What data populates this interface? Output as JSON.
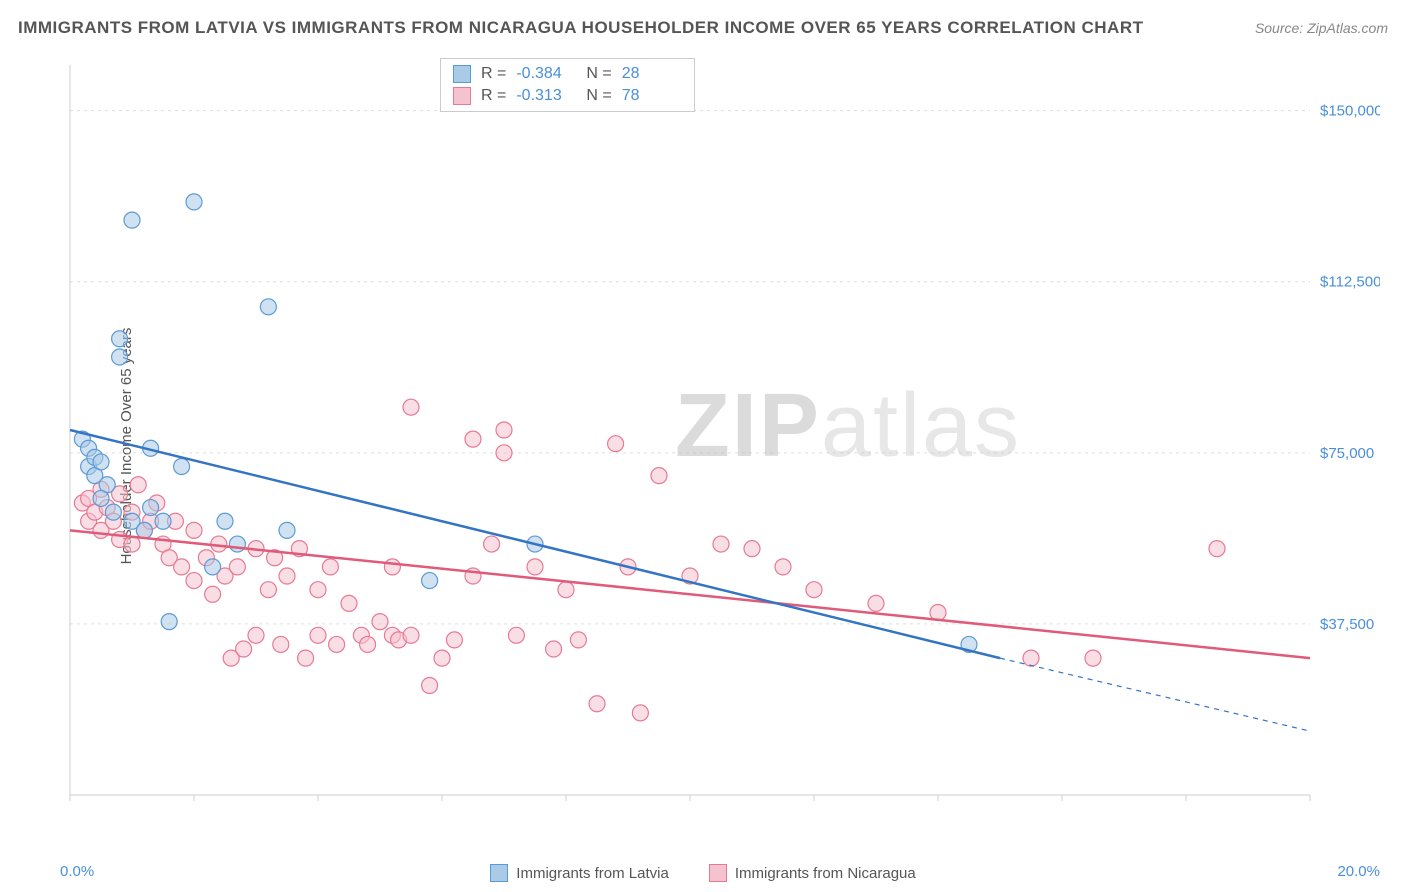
{
  "title": "IMMIGRANTS FROM LATVIA VS IMMIGRANTS FROM NICARAGUA HOUSEHOLDER INCOME OVER 65 YEARS CORRELATION CHART",
  "source": "Source: ZipAtlas.com",
  "ylabel": "Householder Income Over 65 years",
  "watermark": {
    "bold": "ZIP",
    "rest": "atlas"
  },
  "chart": {
    "type": "scatter",
    "xlim": [
      0,
      20
    ],
    "ylim": [
      0,
      160000
    ],
    "xmin_label": "0.0%",
    "xmax_label": "20.0%",
    "yticks": [
      {
        "value": 37500,
        "label": "$37,500"
      },
      {
        "value": 75000,
        "label": "$75,000"
      },
      {
        "value": 112500,
        "label": "$112,500"
      },
      {
        "value": 150000,
        "label": "$150,000"
      }
    ],
    "xticks_minor": [
      0,
      2,
      4,
      6,
      8,
      10,
      12,
      14,
      16,
      18,
      20
    ],
    "background_color": "#ffffff",
    "grid_color": "#dddddd",
    "axis_color": "#cccccc",
    "tick_label_color": "#4a8fd8",
    "marker_radius": 8,
    "marker_opacity": 0.55,
    "line_width": 2.5,
    "series": [
      {
        "name": "Immigrants from Latvia",
        "color_fill": "#a9cbe8",
        "color_stroke": "#5b9bd5",
        "line_color": "#3374c4",
        "R": "-0.384",
        "N": "28",
        "trend": {
          "x1": 0,
          "y1": 80000,
          "x2": 15,
          "y2": 30000,
          "dash_from_x": 15,
          "dash_to_x": 20,
          "dash_to_y": 14000
        },
        "points": [
          [
            0.2,
            78000
          ],
          [
            0.3,
            76000
          ],
          [
            0.3,
            72000
          ],
          [
            0.4,
            70000
          ],
          [
            0.4,
            74000
          ],
          [
            0.5,
            73000
          ],
          [
            0.6,
            68000
          ],
          [
            0.7,
            62000
          ],
          [
            0.8,
            100000
          ],
          [
            0.8,
            96000
          ],
          [
            1.0,
            126000
          ],
          [
            1.0,
            60000
          ],
          [
            1.2,
            58000
          ],
          [
            1.3,
            63000
          ],
          [
            1.3,
            76000
          ],
          [
            1.5,
            60000
          ],
          [
            1.6,
            38000
          ],
          [
            1.8,
            72000
          ],
          [
            2.0,
            130000
          ],
          [
            2.3,
            50000
          ],
          [
            2.5,
            60000
          ],
          [
            2.7,
            55000
          ],
          [
            3.2,
            107000
          ],
          [
            3.5,
            58000
          ],
          [
            5.8,
            47000
          ],
          [
            7.5,
            55000
          ],
          [
            14.5,
            33000
          ],
          [
            0.5,
            65000
          ]
        ]
      },
      {
        "name": "Immigrants from Nicaragua",
        "color_fill": "#f5c3cf",
        "color_stroke": "#e77a93",
        "line_color": "#e05a7a",
        "R": "-0.313",
        "N": "78",
        "trend": {
          "x1": 0,
          "y1": 58000,
          "x2": 20,
          "y2": 30000
        },
        "points": [
          [
            0.2,
            64000
          ],
          [
            0.3,
            65000
          ],
          [
            0.3,
            60000
          ],
          [
            0.4,
            62000
          ],
          [
            0.5,
            67000
          ],
          [
            0.5,
            58000
          ],
          [
            0.6,
            63000
          ],
          [
            0.7,
            60000
          ],
          [
            0.8,
            56000
          ],
          [
            0.8,
            66000
          ],
          [
            1.0,
            62000
          ],
          [
            1.0,
            55000
          ],
          [
            1.1,
            68000
          ],
          [
            1.2,
            58000
          ],
          [
            1.3,
            60000
          ],
          [
            1.4,
            64000
          ],
          [
            1.5,
            55000
          ],
          [
            1.6,
            52000
          ],
          [
            1.7,
            60000
          ],
          [
            1.8,
            50000
          ],
          [
            2.0,
            58000
          ],
          [
            2.0,
            47000
          ],
          [
            2.2,
            52000
          ],
          [
            2.3,
            44000
          ],
          [
            2.4,
            55000
          ],
          [
            2.5,
            48000
          ],
          [
            2.6,
            30000
          ],
          [
            2.7,
            50000
          ],
          [
            2.8,
            32000
          ],
          [
            3.0,
            54000
          ],
          [
            3.0,
            35000
          ],
          [
            3.2,
            45000
          ],
          [
            3.3,
            52000
          ],
          [
            3.4,
            33000
          ],
          [
            3.5,
            48000
          ],
          [
            3.7,
            54000
          ],
          [
            3.8,
            30000
          ],
          [
            4.0,
            45000
          ],
          [
            4.0,
            35000
          ],
          [
            4.2,
            50000
          ],
          [
            4.3,
            33000
          ],
          [
            4.5,
            42000
          ],
          [
            4.7,
            35000
          ],
          [
            4.8,
            33000
          ],
          [
            5.0,
            38000
          ],
          [
            5.2,
            35000
          ],
          [
            5.2,
            50000
          ],
          [
            5.3,
            34000
          ],
          [
            5.5,
            85000
          ],
          [
            5.5,
            35000
          ],
          [
            5.8,
            24000
          ],
          [
            6.0,
            30000
          ],
          [
            6.2,
            34000
          ],
          [
            6.5,
            48000
          ],
          [
            6.5,
            78000
          ],
          [
            7.0,
            75000
          ],
          [
            7.0,
            80000
          ],
          [
            7.2,
            35000
          ],
          [
            7.5,
            50000
          ],
          [
            7.8,
            32000
          ],
          [
            8.0,
            45000
          ],
          [
            8.2,
            34000
          ],
          [
            8.5,
            20000
          ],
          [
            8.8,
            77000
          ],
          [
            9.0,
            50000
          ],
          [
            9.2,
            18000
          ],
          [
            9.5,
            70000
          ],
          [
            10.0,
            48000
          ],
          [
            10.5,
            55000
          ],
          [
            11.0,
            54000
          ],
          [
            11.5,
            50000
          ],
          [
            12.0,
            45000
          ],
          [
            13.0,
            42000
          ],
          [
            14.0,
            40000
          ],
          [
            15.5,
            30000
          ],
          [
            16.5,
            30000
          ],
          [
            18.5,
            54000
          ],
          [
            6.8,
            55000
          ]
        ]
      }
    ]
  },
  "legend": {
    "series1_label": "Immigrants from Latvia",
    "series2_label": "Immigrants from Nicaragua"
  },
  "stats_labels": {
    "R": "R =",
    "N": "N ="
  }
}
